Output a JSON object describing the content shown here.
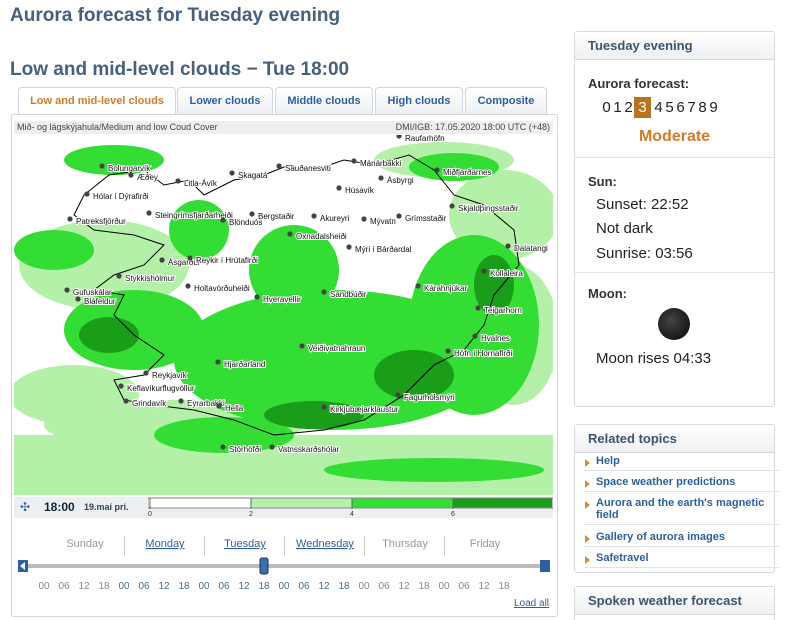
{
  "header": {
    "title": "Aurora forecast for Tuesday evening"
  },
  "section": {
    "title": "Low and mid-level clouds − Tue 18:00"
  },
  "tabs": {
    "items": [
      "Low and mid-level clouds",
      "Lower clouds",
      "Middle clouds",
      "High clouds",
      "Composite"
    ],
    "active": 0
  },
  "map": {
    "caption_left": "Mið- og lágskýjahula/Medium and low Coud Cover",
    "caption_right": "DMI/IGB: 17.05.2020 18:00 UTC (+48)",
    "places": [
      "Raufarhöfn",
      "Bolungarvík",
      "Æðey",
      "Sauðanesviti",
      "Mánárbakki",
      "Miðfjarðarnes",
      "Litla-Ávík",
      "Skagatá",
      "Húsavík",
      "Ásbyrgi",
      "Hólar í Dýrafirði",
      "Patreksfjörður",
      "Steingrímsfjarðarheiði",
      "Bergstaðir",
      "Akureyri",
      "Mývatn",
      "Grímsstaðir",
      "Skjaldþingsstaðir",
      "Blönduós",
      "Oxnadalsheiði",
      "Mýri í Bárðardal",
      "Dalatangi",
      "Ásgarður",
      "Reykir í Hrútafirði",
      "Kollaleira",
      "Stykkishólmur",
      "Gufuskálar",
      "Holtavörðuheiði",
      "Hveravellir",
      "Sandbúðir",
      "Kárahnjúkar",
      "Teigarhorn",
      "Hvalnes",
      "Höfn í Hornafirði",
      "Veiðivatnahraun",
      "Hjarðarland",
      "Reykjavík",
      "Keflavíkurflugvöllur",
      "Grindavík",
      "Eyrarbakki",
      "Hella",
      "Kirkjubæjarklaustur",
      "Fagurhólsmýri",
      "Stórhöfði",
      "Vatnsskarðshólar",
      "Bláfeldur"
    ]
  },
  "timebar": {
    "time": "18:00",
    "date": "19.maí pri.",
    "colorbar": {
      "ticks": [
        0,
        2,
        4,
        6
      ],
      "colors": [
        "#ffffff",
        "#b4f0a8",
        "#33dd33",
        "#1a9e1a"
      ]
    }
  },
  "timeline": {
    "days": [
      {
        "name": "Sunday",
        "available": false,
        "hours": [
          "00",
          "06",
          "12",
          "18"
        ]
      },
      {
        "name": "Monday",
        "available": true,
        "hours": [
          "00",
          "06",
          "12",
          "18"
        ]
      },
      {
        "name": "Tuesday",
        "available": true,
        "hours": [
          "00",
          "06",
          "12",
          "18"
        ]
      },
      {
        "name": "Wednesday",
        "available": true,
        "hours": [
          "00",
          "06",
          "12",
          "18"
        ]
      },
      {
        "name": "Thursday",
        "available": false,
        "hours": [
          "00",
          "06",
          "12",
          "18"
        ]
      },
      {
        "name": "Friday",
        "available": false,
        "hours": [
          "00",
          "06",
          "12",
          "18"
        ]
      }
    ],
    "load_all": "Load all"
  },
  "sidebar": {
    "title": "Tuesday evening",
    "aurora": {
      "label": "Aurora forecast:",
      "levels": [
        0,
        1,
        2,
        3,
        4,
        5,
        6,
        7,
        8,
        9
      ],
      "current": 3,
      "status": "Moderate"
    },
    "sun": {
      "label": "Sun:",
      "sunset": "Sunset: 22:52",
      "dark": "Not dark",
      "sunrise": "Sunrise: 03:56"
    },
    "moon": {
      "label": "Moon:",
      "rises": "Moon rises 04:33"
    },
    "related": {
      "title": "Related topics",
      "items": [
        "Help",
        "Space weather predictions",
        "Aurora and the earth's magnetic field",
        "Gallery of aurora images",
        "Safetravel"
      ]
    },
    "spoken": {
      "title": "Spoken weather forecast"
    }
  }
}
